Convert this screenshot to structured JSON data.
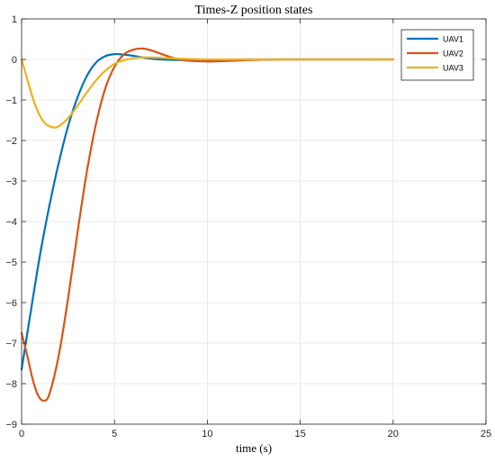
{
  "chart_data": {
    "type": "line",
    "title": "Times-Z position states",
    "xlabel": "time (s)",
    "ylabel": "",
    "xlim": [
      0,
      25
    ],
    "ylim": [
      -9,
      1
    ],
    "xticks": [
      0,
      5,
      10,
      15,
      20,
      25
    ],
    "yticks": [
      1,
      0,
      -1,
      -2,
      -3,
      -4,
      -5,
      -6,
      -7,
      -8,
      -9
    ],
    "xtick_labels": [
      "0",
      "5",
      "10",
      "15",
      "20",
      "25"
    ],
    "ytick_labels": [
      "1",
      "0",
      "−1",
      "−2",
      "−3",
      "−4",
      "−5",
      "−6",
      "−7",
      "−8",
      "−9"
    ],
    "grid": true,
    "legend_position": "top-right",
    "series": [
      {
        "name": "UAV1",
        "color": "#0072BD",
        "x": [
          0,
          0.5,
          1.0,
          1.5,
          2.0,
          2.5,
          3.0,
          3.5,
          4.0,
          4.5,
          5.0,
          5.5,
          6.0,
          6.5,
          7.0,
          7.5,
          8.0,
          9.0,
          10.0,
          11.0,
          12.0,
          14.0,
          17.0,
          20.0
        ],
        "y": [
          -7.65,
          -6.2,
          -4.8,
          -3.6,
          -2.55,
          -1.65,
          -0.95,
          -0.42,
          -0.08,
          0.08,
          0.13,
          0.12,
          0.09,
          0.05,
          0.02,
          0.0,
          -0.01,
          -0.02,
          -0.02,
          -0.01,
          0.0,
          0.0,
          0.0,
          0.0
        ]
      },
      {
        "name": "UAV2",
        "color": "#D95319",
        "x": [
          0,
          0.3,
          0.6,
          0.9,
          1.2,
          1.5,
          2.0,
          2.5,
          3.0,
          3.5,
          4.0,
          4.5,
          5.0,
          5.5,
          6.0,
          6.5,
          7.0,
          7.5,
          8.0,
          8.5,
          9.0,
          10.0,
          11.0,
          12.0,
          14.0,
          17.0,
          20.0
        ],
        "y": [
          -6.75,
          -7.3,
          -7.9,
          -8.3,
          -8.42,
          -8.25,
          -7.3,
          -5.9,
          -4.3,
          -2.8,
          -1.6,
          -0.72,
          -0.18,
          0.12,
          0.24,
          0.27,
          0.22,
          0.14,
          0.06,
          0.0,
          -0.03,
          -0.05,
          -0.04,
          -0.02,
          0.0,
          0.0,
          0.0
        ]
      },
      {
        "name": "UAV3",
        "color": "#EDB120",
        "x": [
          0,
          0.25,
          0.5,
          0.75,
          1.0,
          1.25,
          1.5,
          1.75,
          2.0,
          2.5,
          3.0,
          3.5,
          4.0,
          4.5,
          5.0,
          5.5,
          6.0,
          6.5,
          7.0,
          7.5,
          8.0,
          9.0,
          10.0,
          12.0,
          15.0,
          20.0
        ],
        "y": [
          0.0,
          -0.4,
          -0.8,
          -1.15,
          -1.4,
          -1.57,
          -1.65,
          -1.68,
          -1.65,
          -1.45,
          -1.15,
          -0.82,
          -0.52,
          -0.28,
          -0.11,
          -0.02,
          0.03,
          0.05,
          0.05,
          0.04,
          0.03,
          0.01,
          0.0,
          0.0,
          0.0,
          0.0
        ]
      }
    ]
  }
}
